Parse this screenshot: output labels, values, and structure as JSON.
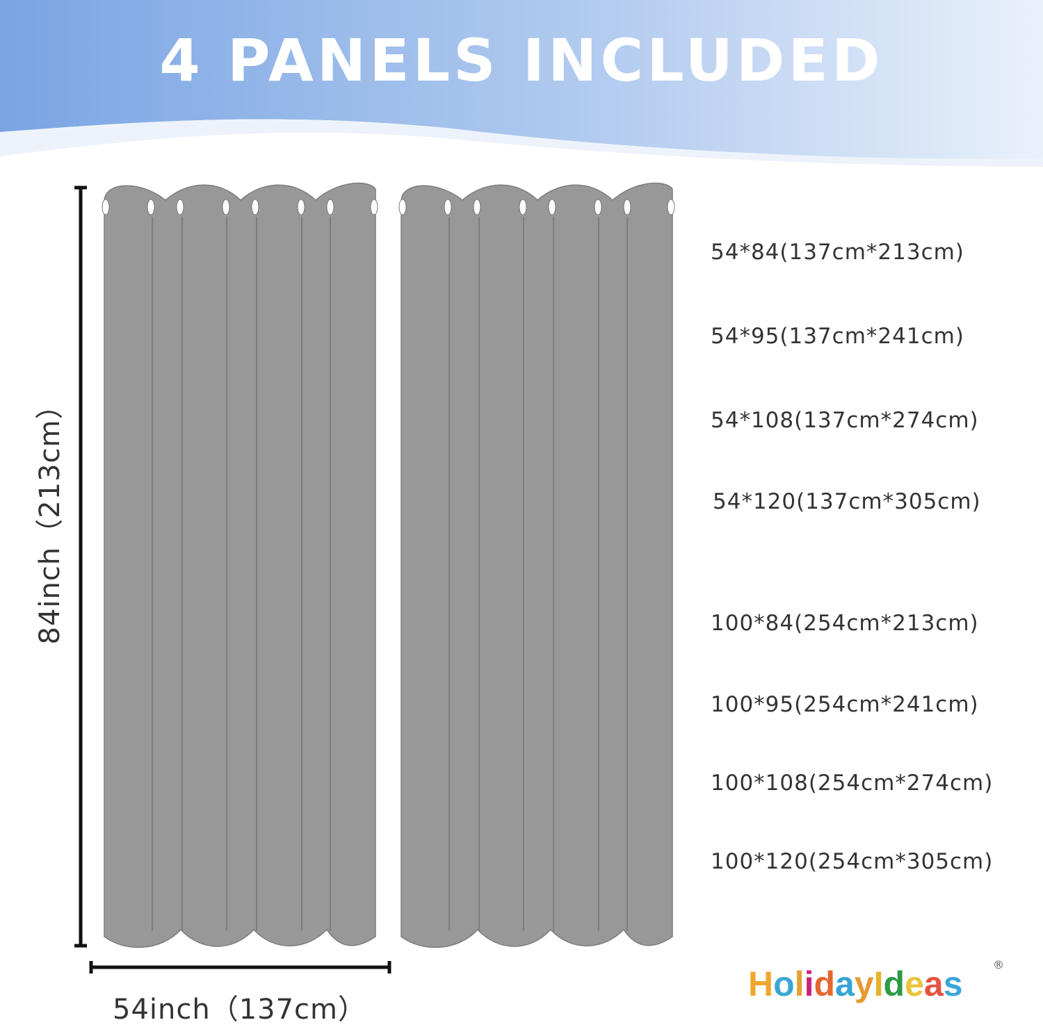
{
  "title": "4 PANELS INCLUDED",
  "sizes": [
    "54*84(137cm*213cm)",
    "54*95(137cm*241cm)",
    "54*108(137cm*274cm)",
    "54*120(137cm*305cm)",
    "100*84(254cm*213cm)",
    "100*95(254cm*241cm)",
    "100*108(254cm*274cm)",
    "100*120(254cm*305cm)"
  ],
  "height_label": "84inch（213cm）",
  "width_label": "54inch（137cm）",
  "logo": {
    "text": "HolidayIdeas",
    "registered": "®"
  },
  "colors": {
    "header_left": "#7aa5e3",
    "header_right": "#e9f1fb",
    "curtain": "#989898"
  }
}
